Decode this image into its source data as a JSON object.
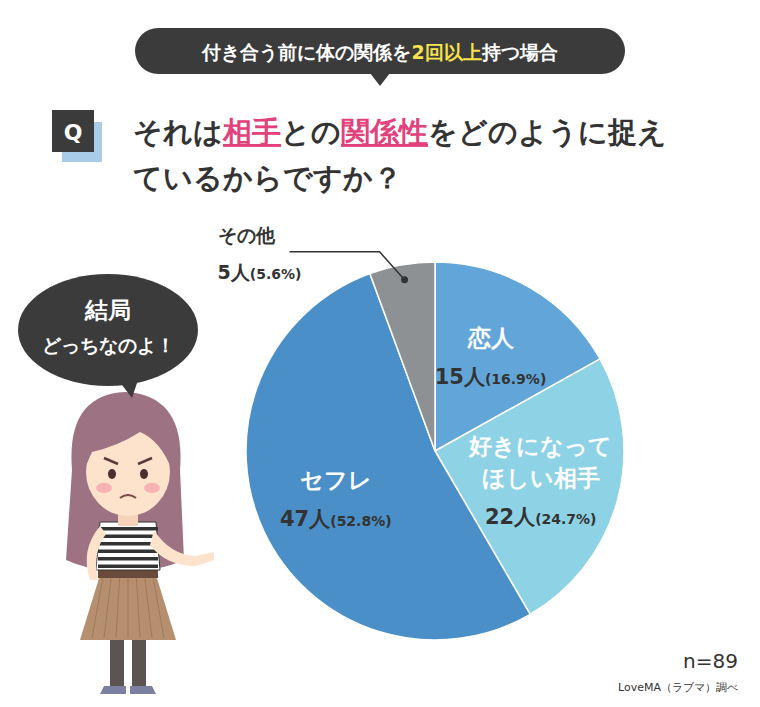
{
  "chart_data": {
    "type": "pie",
    "subtitle": "付き合う前に体の関係を2回以上持つ場合",
    "subtitle_highlights": [
      "2回以上"
    ],
    "q_label": "Q",
    "title": "それは相手との関係性をどのように捉え\nているからですか？",
    "title_highlights": [
      "相手",
      "関係性"
    ],
    "categories": [
      "恋人",
      "好きになって\nほしい相手",
      "セフレ",
      "その他"
    ],
    "values": [
      16.9,
      24.7,
      52.8,
      5.6
    ],
    "value_labels": [
      "15人(16.9%)",
      "22人(24.7%)",
      "47人(52.8%)",
      "5人(5.6%)"
    ],
    "colors": [
      "#62a6d9",
      "#8ed2e5",
      "#4a8fc7",
      "#8d9194"
    ],
    "data_labels": true,
    "annotations": [
      "結局\nどっちなのよ！",
      "n=89",
      "LoveMA（ラブマ）調べ"
    ]
  }
}
